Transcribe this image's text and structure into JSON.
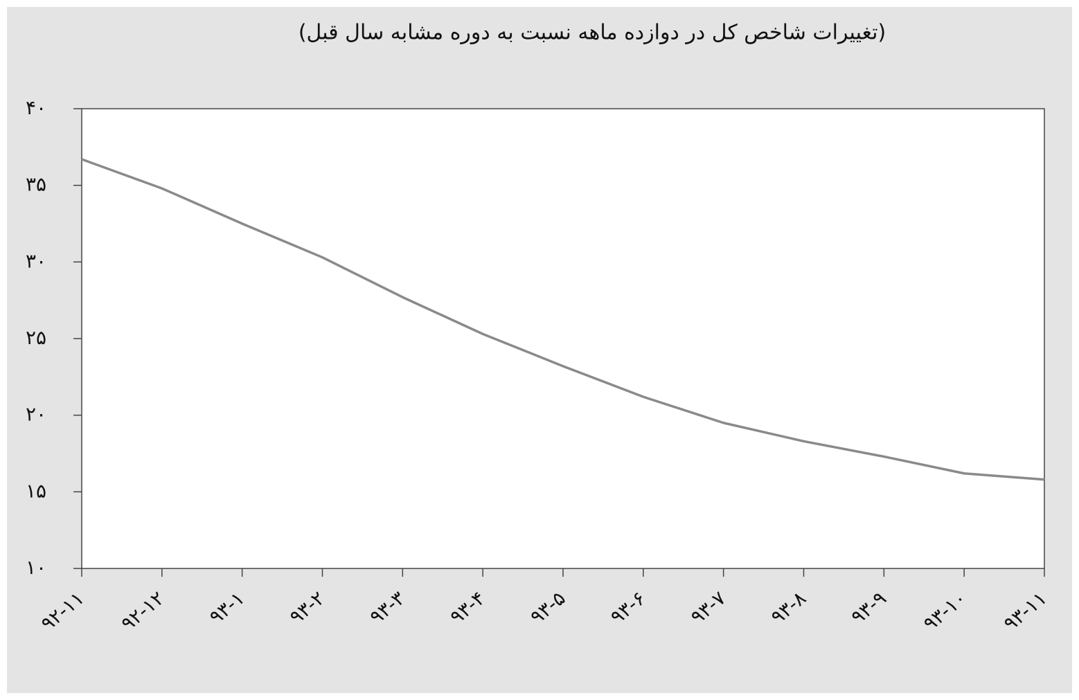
{
  "chart_data": {
    "type": "line",
    "title": "(تغییرات شاخص کل در دوازده ماهه نسبت به دوره مشابه سال قبل)",
    "categories": [
      "۹۲-۱۱",
      "۹۲-۱۲",
      "۹۳-۱",
      "۹۳-۲",
      "۹۳-۳",
      "۹۳-۴",
      "۹۳-۵",
      "۹۳-۶",
      "۹۳-۷",
      "۹۳-۸",
      "۹۳-۹",
      "۹۳-۱۰",
      "۹۳-۱۱"
    ],
    "series": [
      {
        "name": "شاخص کل",
        "color": "#8a8a8a",
        "values": [
          36.7,
          34.8,
          32.5,
          30.3,
          27.7,
          25.3,
          23.2,
          21.2,
          19.5,
          18.3,
          17.3,
          16.2,
          15.8
        ]
      }
    ],
    "ylim": [
      10,
      40
    ],
    "yticks": [
      {
        "value": 10,
        "label": "۱۰"
      },
      {
        "value": 15,
        "label": "۱۵"
      },
      {
        "value": 20,
        "label": "۲۰"
      },
      {
        "value": 25,
        "label": "۲۵"
      },
      {
        "value": 30,
        "label": "۳۰"
      },
      {
        "value": 35,
        "label": "۳۵"
      },
      {
        "value": 40,
        "label": "۴۰"
      }
    ],
    "grid": false
  }
}
